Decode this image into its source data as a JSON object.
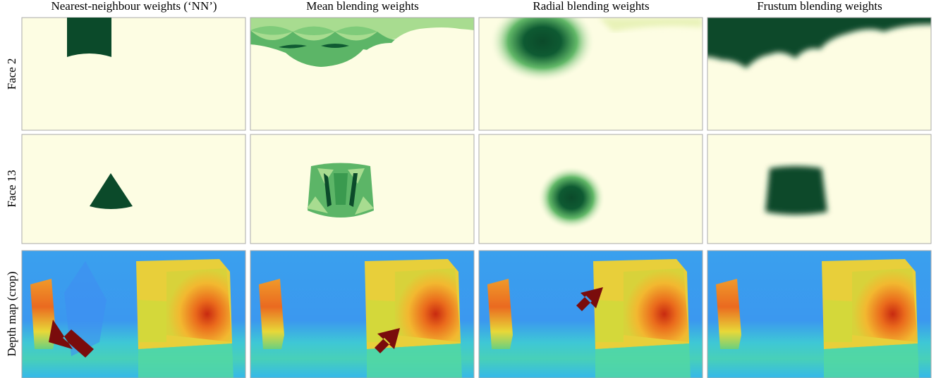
{
  "columns": [
    "Nearest-neighbour weights (‘NN’)",
    "Mean blending weights",
    "Radial blending weights",
    "Frustum blending weights"
  ],
  "rows": [
    "Face 2",
    "Face 13",
    "Depth map (crop)"
  ]
}
